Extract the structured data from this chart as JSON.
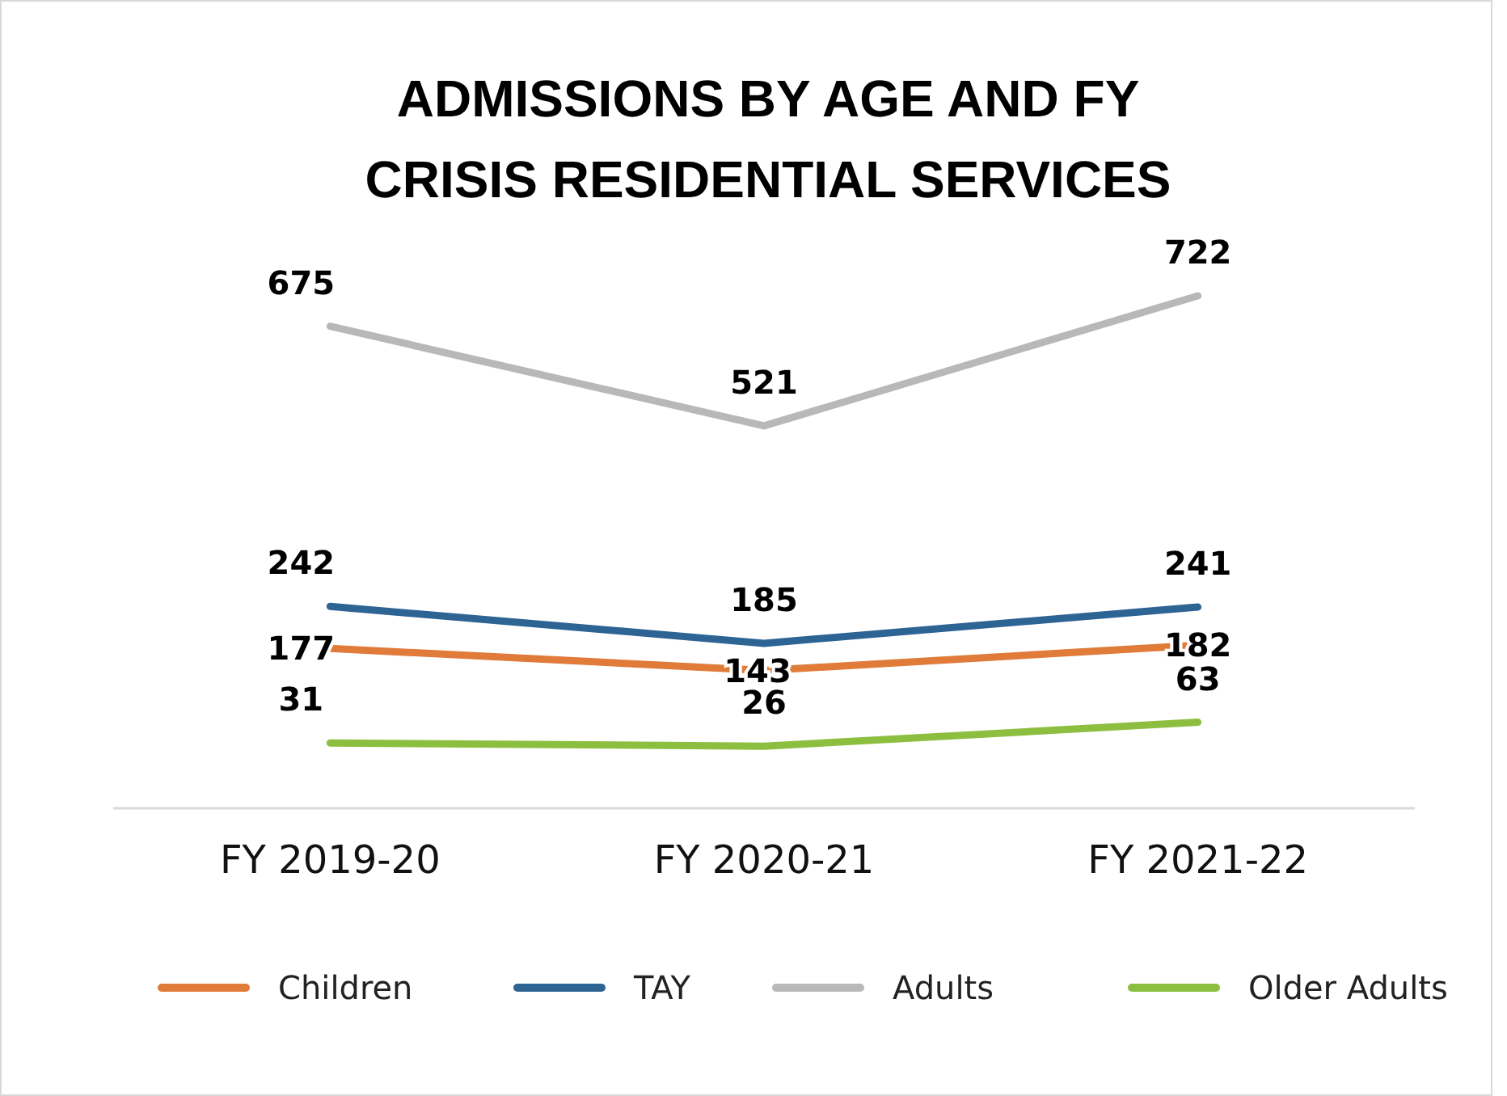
{
  "chart_data": {
    "type": "line",
    "title": "ADMISSIONS BY AGE AND FY\nCRISIS RESIDENTIAL SERVICES",
    "categories": [
      "FY 2019-20",
      "FY 2020-21",
      "FY 2021-22"
    ],
    "series": [
      {
        "name": "Children",
        "color": "#e07b39",
        "values": [
          177,
          143,
          182
        ]
      },
      {
        "name": "TAY",
        "color": "#2e6494",
        "values": [
          242,
          185,
          241
        ]
      },
      {
        "name": "Adults",
        "color": "#b8b8b8",
        "values": [
          675,
          521,
          722
        ]
      },
      {
        "name": "Older Adults",
        "color": "#8cbf3f",
        "values": [
          31,
          26,
          63
        ]
      }
    ],
    "data_labels": true,
    "legend": "bottom",
    "marker": "none",
    "line_style": "solid",
    "grid": false
  }
}
